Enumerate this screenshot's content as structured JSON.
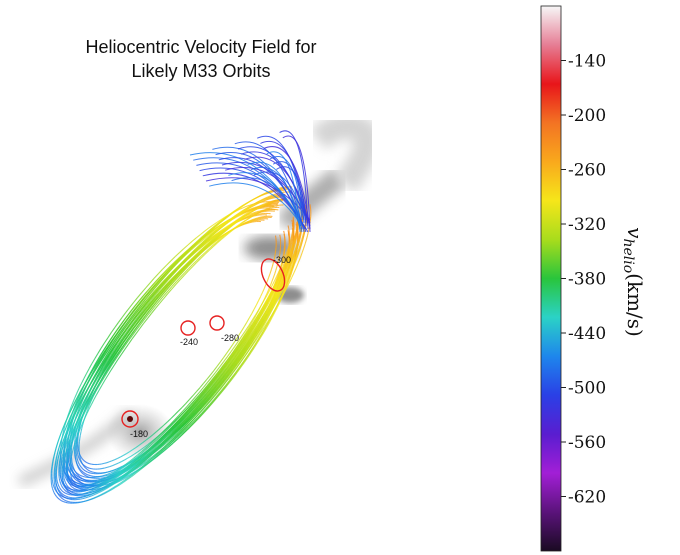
{
  "chart_data": {
    "type": "scatter",
    "title_lines": [
      "Heliocentric Velocity Field for",
      "Likely M33 Orbits"
    ],
    "colorbar": {
      "label_symbol": "v",
      "label_subscript": "helio",
      "label_unit": "(km/s)",
      "ticks": [
        -140,
        -200,
        -260,
        -320,
        -380,
        -440,
        -500,
        -560,
        -620
      ],
      "range": [
        -680,
        -80
      ],
      "colors": [
        "#1a0a22",
        "#5a137a",
        "#a21fd6",
        "#5a1dd0",
        "#2a40e6",
        "#1e86ec",
        "#2bd2c6",
        "#29c53c",
        "#a8dc1c",
        "#f6e61a",
        "#f9a91c",
        "#f37323",
        "#e8151a",
        "#e67e95",
        "#f7f7f7"
      ]
    },
    "annotations": [
      {
        "label": "-300",
        "velocity": -300
      },
      {
        "label": "-240",
        "velocity": -240
      },
      {
        "label": "-280",
        "velocity": -280
      },
      {
        "label": "-180",
        "velocity": -180
      }
    ],
    "grid": false,
    "legend": "none"
  }
}
